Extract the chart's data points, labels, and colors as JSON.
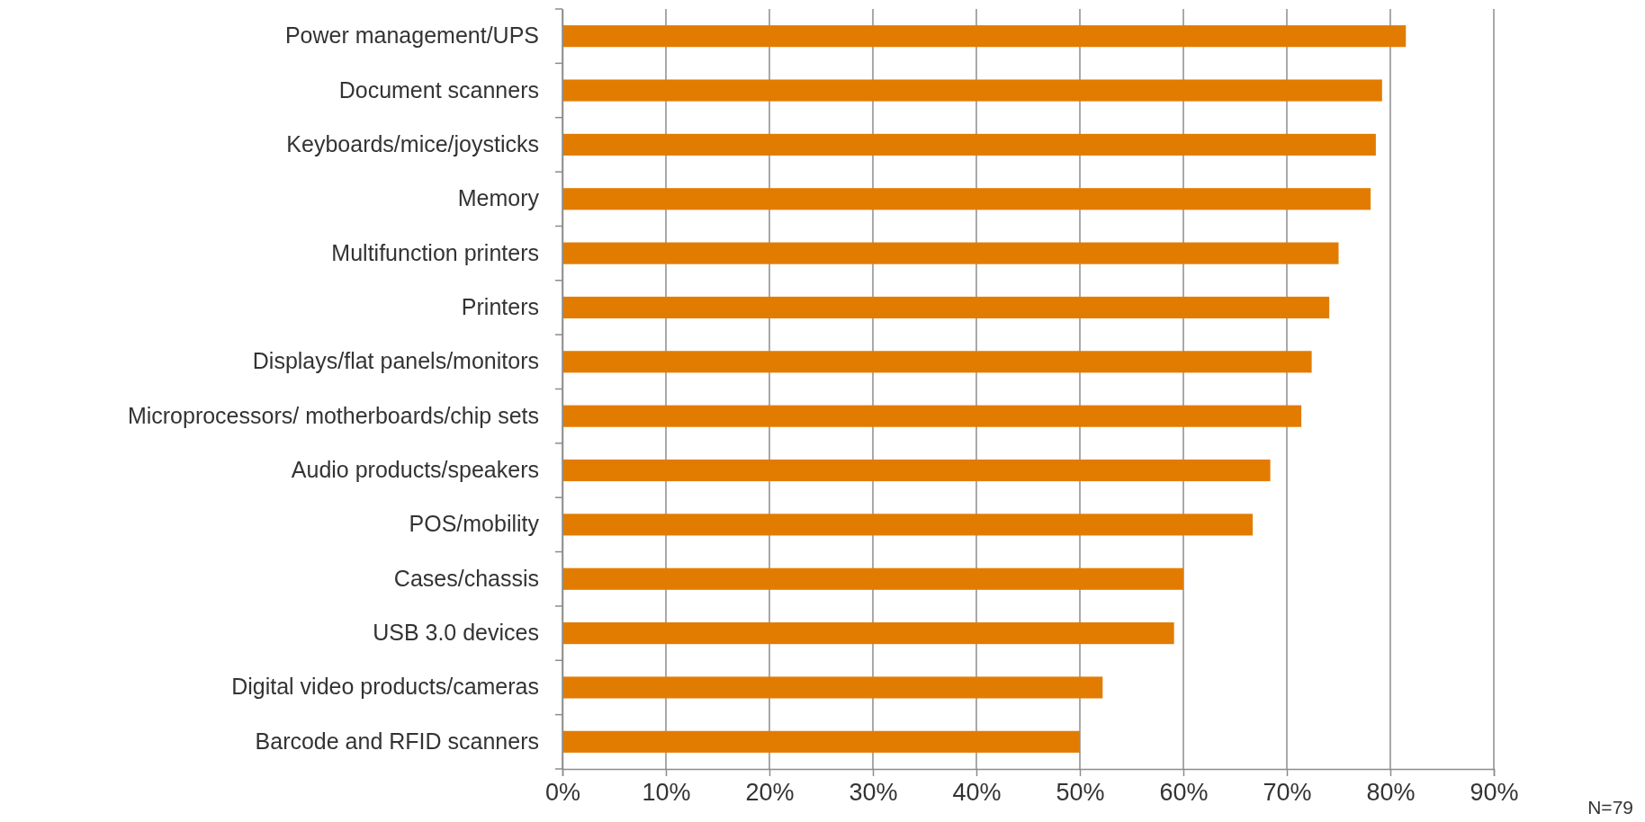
{
  "chart_data": {
    "type": "bar",
    "orientation": "horizontal",
    "categories": [
      "Power management/UPS",
      "Document scanners",
      "Keyboards/mice/joysticks",
      "Memory",
      "Multifunction printers",
      "Printers",
      "Displays/flat panels/monitors",
      "Microprocessors/ motherboards/chip sets",
      "Audio products/speakers",
      "POS/mobility",
      "Cases/chassis",
      "USB 3.0 devices",
      "Digital video products/cameras",
      "Barcode and RFID scanners"
    ],
    "values": [
      81.5,
      79.2,
      78.6,
      78.1,
      75.0,
      74.1,
      72.4,
      71.4,
      68.4,
      66.7,
      60.0,
      59.1,
      52.2,
      50.0
    ],
    "color": "#e27c00",
    "xlim": [
      0,
      90
    ],
    "xticks": [
      {
        "value": 0,
        "label": "0%"
      },
      {
        "value": 10,
        "label": "10%"
      },
      {
        "value": 20,
        "label": "20%"
      },
      {
        "value": 30,
        "label": "30%"
      },
      {
        "value": 40,
        "label": "40%"
      },
      {
        "value": 50,
        "label": "50%"
      },
      {
        "value": 60,
        "label": "60%"
      },
      {
        "value": 70,
        "label": "70%"
      },
      {
        "value": 80,
        "label": "80%"
      },
      {
        "value": 90,
        "label": "90%"
      }
    ],
    "grid": "x",
    "annotations": [
      "N=79"
    ]
  }
}
